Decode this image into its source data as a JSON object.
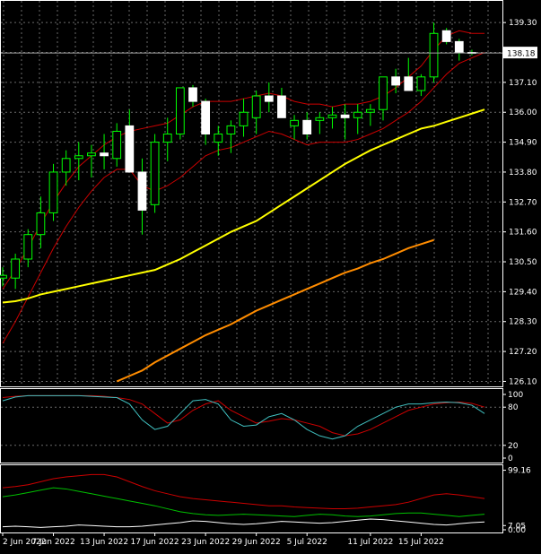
{
  "chart_data": [
    {
      "type": "candlestick",
      "panel": "price",
      "y_ticks": [
        "139.30",
        "138.20",
        "137.10",
        "136.00",
        "134.90",
        "133.80",
        "132.70",
        "131.60",
        "130.50",
        "129.40",
        "128.30",
        "127.20",
        "126.10"
      ],
      "ylim": [
        125.95,
        139.8
      ],
      "current_price": "138.18",
      "x_labels": [
        "2 Jun 2022",
        "7 Jun 2022",
        "13 Jun 2022",
        "17 Jun 2022",
        "23 Jun 2022",
        "29 Jun 2022",
        "5 Jul 2022",
        "11 Jul 2022",
        "15 Jul 2022"
      ],
      "grid": true,
      "colors": {
        "bull": "#ffffff",
        "bear": "#ffffff",
        "wick": "#00ff00",
        "ma_fast": "#ffff00",
        "ma_slow": "#ff8c00",
        "envelope": "#cc0000",
        "price_line": "#a0a0a0"
      },
      "candles": [
        {
          "o": 129.9,
          "h": 130.3,
          "l": 129.6,
          "c": 130.0
        },
        {
          "o": 129.9,
          "h": 130.8,
          "l": 129.5,
          "c": 130.6
        },
        {
          "o": 130.6,
          "h": 131.7,
          "l": 130.3,
          "c": 131.5
        },
        {
          "o": 131.5,
          "h": 132.9,
          "l": 131.0,
          "c": 132.3
        },
        {
          "o": 132.3,
          "h": 134.1,
          "l": 132.0,
          "c": 133.8
        },
        {
          "o": 133.8,
          "h": 134.6,
          "l": 133.3,
          "c": 134.3
        },
        {
          "o": 134.3,
          "h": 134.9,
          "l": 133.5,
          "c": 134.4
        },
        {
          "o": 134.4,
          "h": 134.8,
          "l": 133.6,
          "c": 134.5
        },
        {
          "o": 134.5,
          "h": 135.2,
          "l": 133.9,
          "c": 134.4
        },
        {
          "o": 134.3,
          "h": 135.6,
          "l": 134.0,
          "c": 135.3
        },
        {
          "o": 135.5,
          "h": 136.1,
          "l": 133.8,
          "c": 133.8
        },
        {
          "o": 133.8,
          "h": 134.3,
          "l": 131.5,
          "c": 132.4
        },
        {
          "o": 132.6,
          "h": 135.2,
          "l": 132.3,
          "c": 134.9
        },
        {
          "o": 134.9,
          "h": 135.8,
          "l": 134.2,
          "c": 135.2
        },
        {
          "o": 135.2,
          "h": 136.9,
          "l": 135.0,
          "c": 136.9
        },
        {
          "o": 136.9,
          "h": 137.0,
          "l": 136.2,
          "c": 136.4
        },
        {
          "o": 136.4,
          "h": 136.5,
          "l": 134.8,
          "c": 135.2
        },
        {
          "o": 134.9,
          "h": 135.5,
          "l": 134.4,
          "c": 135.2
        },
        {
          "o": 135.2,
          "h": 135.7,
          "l": 134.5,
          "c": 135.5
        },
        {
          "o": 135.5,
          "h": 136.5,
          "l": 135.1,
          "c": 136.0
        },
        {
          "o": 135.8,
          "h": 136.8,
          "l": 135.2,
          "c": 136.6
        },
        {
          "o": 136.6,
          "h": 137.1,
          "l": 136.0,
          "c": 136.4
        },
        {
          "o": 136.6,
          "h": 136.9,
          "l": 135.8,
          "c": 135.8
        },
        {
          "o": 135.5,
          "h": 135.9,
          "l": 135.0,
          "c": 135.7
        },
        {
          "o": 135.7,
          "h": 136.0,
          "l": 135.0,
          "c": 135.2
        },
        {
          "o": 135.7,
          "h": 136.0,
          "l": 135.2,
          "c": 135.8
        },
        {
          "o": 135.8,
          "h": 136.2,
          "l": 135.4,
          "c": 135.9
        },
        {
          "o": 135.9,
          "h": 136.3,
          "l": 135.0,
          "c": 135.8
        },
        {
          "o": 135.8,
          "h": 136.3,
          "l": 135.2,
          "c": 136.0
        },
        {
          "o": 136.0,
          "h": 136.3,
          "l": 135.5,
          "c": 136.1
        },
        {
          "o": 136.1,
          "h": 137.3,
          "l": 135.7,
          "c": 137.3
        },
        {
          "o": 137.3,
          "h": 137.6,
          "l": 136.7,
          "c": 137.0
        },
        {
          "o": 137.3,
          "h": 138.0,
          "l": 136.8,
          "c": 136.8
        },
        {
          "o": 136.8,
          "h": 137.4,
          "l": 136.6,
          "c": 137.3
        },
        {
          "o": 137.3,
          "h": 139.3,
          "l": 137.1,
          "c": 138.9
        },
        {
          "o": 139.0,
          "h": 139.1,
          "l": 138.5,
          "c": 138.6
        },
        {
          "o": 138.6,
          "h": 138.7,
          "l": 137.9,
          "c": 138.2
        },
        {
          "o": 138.2,
          "h": 138.3,
          "l": 138.1,
          "c": 138.18
        }
      ],
      "ma_fast_values": [
        129.0,
        129.05,
        129.15,
        129.3,
        129.4,
        129.5,
        129.6,
        129.7,
        129.8,
        129.9,
        130.0,
        130.1,
        130.2,
        130.4,
        130.6,
        130.85,
        131.1,
        131.35,
        131.6,
        131.8,
        132.0,
        132.3,
        132.6,
        132.9,
        133.2,
        133.5,
        133.8,
        134.1,
        134.35,
        134.6,
        134.8,
        135.0,
        135.2,
        135.4,
        135.5,
        135.65,
        135.8,
        135.95,
        136.1
      ],
      "ma_slow_values": [
        null,
        null,
        null,
        null,
        null,
        null,
        null,
        null,
        null,
        126.1,
        126.3,
        126.5,
        126.8,
        127.05,
        127.3,
        127.55,
        127.8,
        128.0,
        128.2,
        128.45,
        128.7,
        128.9,
        129.1,
        129.3,
        129.5,
        129.7,
        129.9,
        130.1,
        130.25,
        130.45,
        130.6,
        130.8,
        131.0,
        131.15,
        131.3
      ],
      "env_upper": [
        129.5,
        130.2,
        131.0,
        131.9,
        132.7,
        133.4,
        134.0,
        134.4,
        134.8,
        135.1,
        135.3,
        135.4,
        135.5,
        135.6,
        135.9,
        136.2,
        136.4,
        136.4,
        136.4,
        136.5,
        136.6,
        136.7,
        136.6,
        136.4,
        136.3,
        136.3,
        136.2,
        136.3,
        136.3,
        136.4,
        136.6,
        136.9,
        137.3,
        137.7,
        138.3,
        138.8,
        139.0,
        138.9,
        138.9
      ],
      "env_lower": [
        127.5,
        128.3,
        129.2,
        130.1,
        131.0,
        131.8,
        132.5,
        133.1,
        133.6,
        133.9,
        133.9,
        133.3,
        133.1,
        133.3,
        133.6,
        134.0,
        134.4,
        134.6,
        134.7,
        134.9,
        135.1,
        135.3,
        135.2,
        135.0,
        134.8,
        134.9,
        134.9,
        134.9,
        135.0,
        135.2,
        135.4,
        135.7,
        136.0,
        136.4,
        136.9,
        137.4,
        137.8,
        138.0,
        138.2
      ]
    },
    {
      "type": "line",
      "panel": "stochastic",
      "y_ticks": [
        "100",
        "80",
        "20",
        "0"
      ],
      "ylim": [
        0,
        100
      ],
      "series": [
        {
          "color": "#cc0000",
          "values": [
            95,
            97,
            98,
            98,
            98,
            98,
            98,
            98,
            97,
            95,
            92,
            85,
            70,
            55,
            60,
            75,
            85,
            90,
            75,
            65,
            55,
            58,
            62,
            60,
            55,
            50,
            40,
            35,
            38,
            45,
            55,
            65,
            75,
            80,
            85,
            87,
            88,
            86,
            80
          ]
        },
        {
          "color": "#40c0c0",
          "values": [
            90,
            96,
            98,
            98,
            98,
            98,
            98,
            97,
            96,
            95,
            85,
            60,
            45,
            50,
            70,
            90,
            92,
            85,
            60,
            50,
            52,
            65,
            70,
            60,
            45,
            35,
            30,
            35,
            50,
            60,
            70,
            80,
            85,
            85,
            87,
            88,
            87,
            83,
            70
          ]
        }
      ]
    },
    {
      "type": "line",
      "panel": "oscillator",
      "y_ticks": [
        "99.16",
        "7.05",
        "0.00"
      ],
      "ylim": [
        0,
        100
      ],
      "series": [
        {
          "color": "#cc0000",
          "values": [
            70,
            72,
            75,
            80,
            85,
            88,
            90,
            92,
            92,
            88,
            80,
            72,
            65,
            60,
            55,
            52,
            50,
            48,
            46,
            44,
            42,
            40,
            40,
            38,
            37,
            36,
            35,
            35,
            36,
            38,
            40,
            42,
            46,
            52,
            58,
            60,
            58,
            55,
            52
          ]
        },
        {
          "color": "#00c000",
          "values": [
            55,
            58,
            62,
            66,
            70,
            68,
            64,
            60,
            56,
            52,
            48,
            44,
            40,
            35,
            30,
            27,
            25,
            24,
            25,
            26,
            25,
            24,
            23,
            22,
            24,
            26,
            25,
            23,
            22,
            23,
            25,
            27,
            28,
            28,
            26,
            24,
            22,
            24,
            26
          ]
        },
        {
          "color": "#ffffff",
          "values": [
            5,
            6,
            5,
            4,
            5,
            6,
            8,
            7,
            6,
            5,
            5,
            6,
            8,
            10,
            12,
            15,
            14,
            12,
            10,
            9,
            10,
            12,
            14,
            13,
            12,
            11,
            12,
            14,
            16,
            18,
            17,
            15,
            13,
            11,
            9,
            8,
            10,
            12,
            13
          ]
        }
      ]
    }
  ]
}
